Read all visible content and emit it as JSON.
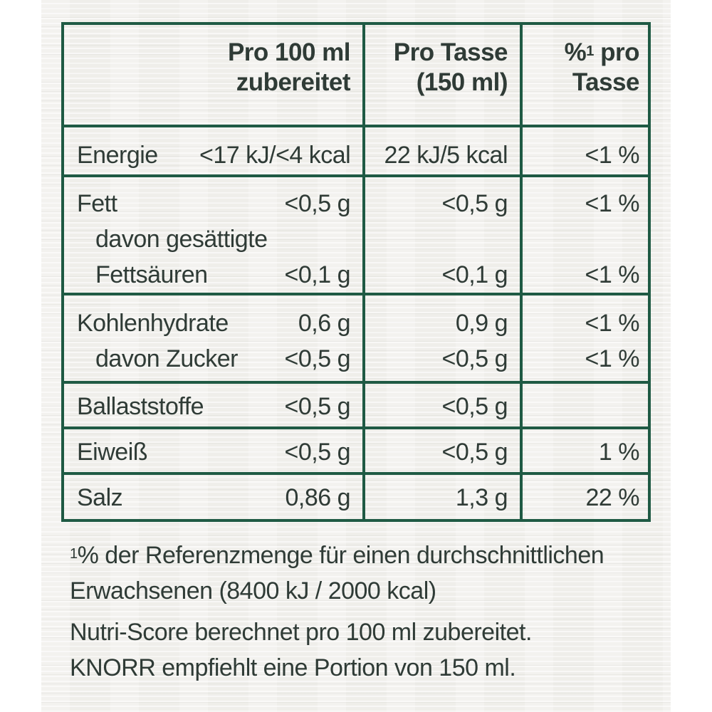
{
  "table": {
    "headers": {
      "col1_line1": "Pro 100 ml",
      "col1_line2": "zubereitet",
      "col2_line1": "Pro Tasse",
      "col2_line2": "(150 ml)",
      "col3_prefix": "%",
      "col3_sup": "1",
      "col3_suffix": " pro",
      "col3_line2": "Tasse"
    },
    "rows": [
      {
        "label": "Energie",
        "per100": "<17 kJ/<4 kcal",
        "perCup": "22 kJ/5 kcal",
        "pct": "<1 %"
      },
      {
        "label": "Fett",
        "per100": "<0,5 g",
        "perCup": "<0,5 g",
        "pct": "<1 %"
      },
      {
        "label": "davon gesättigte",
        "per100": "",
        "perCup": "",
        "pct": ""
      },
      {
        "label": "Fettsäuren",
        "per100": "<0,1 g",
        "perCup": "<0,1 g",
        "pct": "<1 %"
      },
      {
        "label": "Kohlenhydrate",
        "per100": "0,6 g",
        "perCup": "0,9 g",
        "pct": "<1 %"
      },
      {
        "label": "davon Zucker",
        "per100": "<0,5 g",
        "perCup": "<0,5 g",
        "pct": "<1 %"
      },
      {
        "label": "Ballaststoffe",
        "per100": "<0,5 g",
        "perCup": "<0,5 g",
        "pct": ""
      },
      {
        "label": "Eiweiß",
        "per100": "<0,5 g",
        "perCup": "<0,5 g",
        "pct": "1 %"
      },
      {
        "label": "Salz",
        "per100": "0,86 g",
        "perCup": "1,3 g",
        "pct": "22 %"
      }
    ]
  },
  "footnotes": {
    "ref_sup": "1",
    "ref_line1": "% der Referenzmenge für einen durchschnittlichen",
    "ref_line2": "Erwachsenen (8400 kJ / 2000 kcal)",
    "nutri_line1": "Nutri-Score berechnet pro 100 ml zubereitet.",
    "nutri_line2": "KNORR empfiehlt eine Portion von 150 ml."
  },
  "colors": {
    "border": "#1f5a44",
    "text": "#2f3b36",
    "background": "#efeeea"
  }
}
